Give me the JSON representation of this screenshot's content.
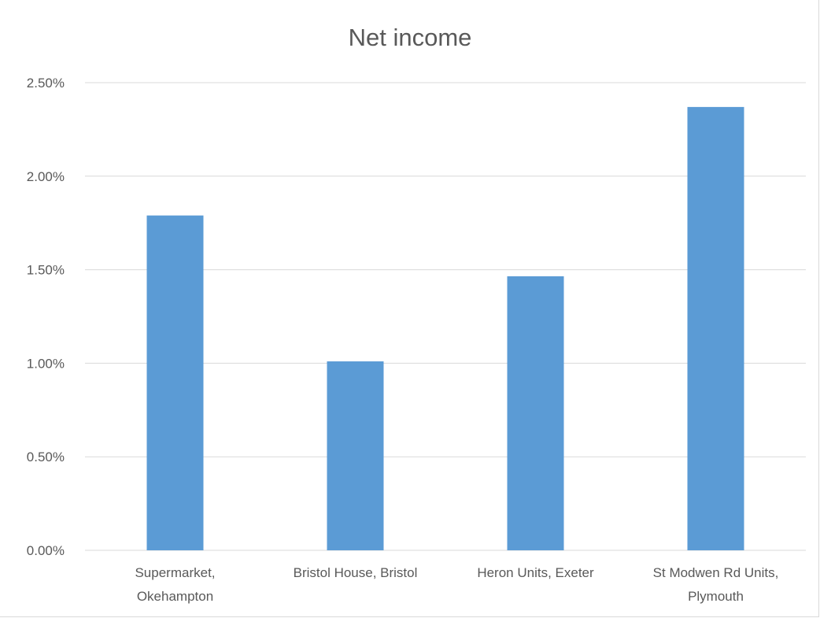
{
  "chart_data": {
    "type": "bar",
    "title": "Net income",
    "xlabel": "",
    "ylabel": "",
    "categories": [
      [
        "Supermarket,",
        "Okehampton"
      ],
      [
        "Bristol House, Bristol"
      ],
      [
        "Heron Units, Exeter"
      ],
      [
        "St Modwen Rd Units,",
        "Plymouth"
      ]
    ],
    "values": [
      1.79,
      1.01,
      1.465,
      2.37
    ],
    "value_format": "percent",
    "ylim": [
      0,
      2.5
    ],
    "yticks": [
      0,
      0.5,
      1.0,
      1.5,
      2.0,
      2.5
    ],
    "ytick_labels": [
      "0.00%",
      "0.50%",
      "1.00%",
      "1.50%",
      "2.00%",
      "2.50%"
    ],
    "grid": true,
    "legend": "none",
    "bar_color": "#5b9bd5",
    "grid_color": "#d9d9d9"
  }
}
